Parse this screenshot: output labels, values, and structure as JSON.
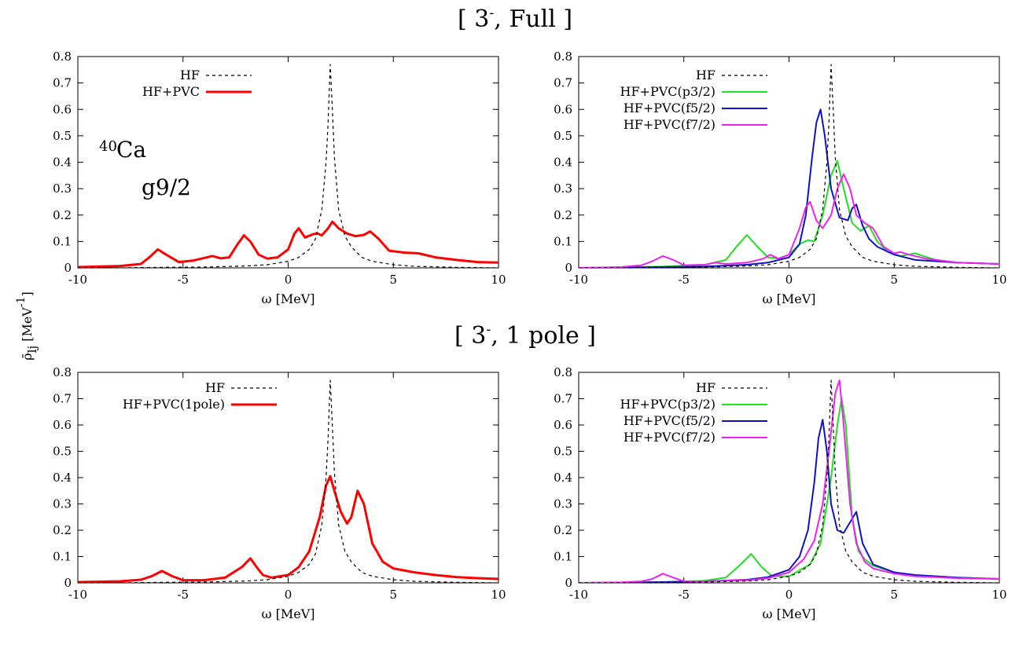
{
  "figure": {
    "titles": [
      {
        "base": "[ 3",
        "sup": "-",
        "rest": ", Full ]"
      },
      {
        "base": "[ 3",
        "sup": "-",
        "rest": ", 1 pole ]"
      }
    ],
    "ylabel": {
      "base": "ρ̄",
      "sub": "lj",
      "unit": " [MeV",
      "unit_sup": "-1",
      "unit_end": "]"
    },
    "annotation": {
      "sup": "40",
      "element": "Ca",
      "orbital": "g9/2"
    },
    "colors": {
      "HF": "#000000",
      "HF+PVC": "#ff0000",
      "p32": "#22dd22",
      "f52": "#1010c8",
      "f72": "#ee22ee"
    }
  },
  "chart_data": [
    {
      "type": "line",
      "panel": "full-left",
      "xlabel": "ω [MeV]",
      "xlim": [
        -10,
        10
      ],
      "ylim": [
        0,
        0.8
      ],
      "xticks": [
        -10,
        -5,
        0,
        5,
        10
      ],
      "yticks": [
        0,
        0.1,
        0.2,
        0.3,
        0.4,
        0.5,
        0.6,
        0.7,
        0.8
      ],
      "legend_position": "top-left",
      "series": [
        {
          "name": "HF",
          "style": "dashed",
          "color": "#000000",
          "x": [
            -10,
            -8,
            -6,
            -4,
            -3,
            -2,
            -1,
            0,
            0.5,
            1,
            1.3,
            1.6,
            1.8,
            1.9,
            2.0,
            2.1,
            2.2,
            2.4,
            2.7,
            3,
            3.5,
            4,
            5,
            6,
            8,
            10
          ],
          "y": [
            0,
            0,
            0.002,
            0.003,
            0.005,
            0.007,
            0.012,
            0.025,
            0.04,
            0.07,
            0.11,
            0.22,
            0.4,
            0.55,
            0.77,
            0.6,
            0.42,
            0.22,
            0.12,
            0.08,
            0.04,
            0.025,
            0.012,
            0.006,
            0.002,
            0
          ]
        },
        {
          "name": "HF+PVC",
          "style": "solid",
          "color": "#ff0000",
          "x": [
            -10,
            -8,
            -7,
            -6.6,
            -6.2,
            -5.8,
            -5.2,
            -4.5,
            -3.6,
            -3.2,
            -2.8,
            -2.4,
            -2.1,
            -1.8,
            -1.4,
            -1,
            -0.5,
            0,
            0.3,
            0.5,
            0.8,
            1.2,
            1.4,
            1.6,
            1.9,
            2.1,
            2.4,
            2.8,
            3.2,
            3.6,
            3.9,
            4.3,
            4.8,
            5.5,
            6.2,
            7,
            8,
            9,
            10
          ],
          "y": [
            0.003,
            0.007,
            0.015,
            0.04,
            0.07,
            0.05,
            0.022,
            0.028,
            0.045,
            0.036,
            0.04,
            0.09,
            0.123,
            0.1,
            0.05,
            0.035,
            0.04,
            0.07,
            0.13,
            0.15,
            0.115,
            0.128,
            0.13,
            0.123,
            0.15,
            0.175,
            0.15,
            0.13,
            0.12,
            0.125,
            0.138,
            0.11,
            0.065,
            0.058,
            0.055,
            0.04,
            0.03,
            0.022,
            0.02
          ]
        }
      ]
    },
    {
      "type": "line",
      "panel": "full-right",
      "xlabel": "ω [MeV]",
      "xlim": [
        -10,
        10
      ],
      "ylim": [
        0,
        0.8
      ],
      "xticks": [
        -10,
        -5,
        0,
        5,
        10
      ],
      "yticks": [
        0,
        0.1,
        0.2,
        0.3,
        0.4,
        0.5,
        0.6,
        0.7,
        0.8
      ],
      "legend_position": "top-left",
      "series": [
        {
          "name": "HF",
          "style": "dashed",
          "color": "#000000",
          "x": [
            -10,
            -8,
            -6,
            -4,
            -3,
            -2,
            -1,
            0,
            0.5,
            1,
            1.3,
            1.6,
            1.8,
            1.9,
            2.0,
            2.1,
            2.2,
            2.4,
            2.7,
            3,
            3.5,
            4,
            5,
            6,
            8,
            10
          ],
          "y": [
            0,
            0,
            0.002,
            0.003,
            0.005,
            0.007,
            0.012,
            0.025,
            0.04,
            0.07,
            0.11,
            0.22,
            0.4,
            0.55,
            0.77,
            0.6,
            0.42,
            0.22,
            0.12,
            0.08,
            0.04,
            0.025,
            0.012,
            0.006,
            0.002,
            0
          ]
        },
        {
          "name": "HF+PVC(p3/2)",
          "style": "solid",
          "color": "#22dd22",
          "x": [
            -10,
            -8,
            -6,
            -4,
            -3,
            -2.5,
            -2,
            -1.5,
            -1,
            -0.5,
            0,
            0.5,
            0.9,
            1.2,
            1.6,
            2.0,
            2.3,
            2.6,
            3,
            3.4,
            3.8,
            4.2,
            4.7,
            5.3,
            6,
            6.5,
            7,
            8,
            10
          ],
          "y": [
            0,
            0.002,
            0.005,
            0.012,
            0.03,
            0.08,
            0.125,
            0.08,
            0.04,
            0.035,
            0.05,
            0.09,
            0.105,
            0.1,
            0.2,
            0.35,
            0.405,
            0.3,
            0.17,
            0.14,
            0.16,
            0.1,
            0.06,
            0.045,
            0.055,
            0.042,
            0.03,
            0.02,
            0.015
          ]
        },
        {
          "name": "HF+PVC(f5/2)",
          "style": "solid",
          "color": "#1010c8",
          "x": [
            -10,
            -8,
            -6,
            -4,
            -2,
            -1,
            0,
            0.5,
            0.8,
            1.1,
            1.3,
            1.5,
            1.7,
            2.0,
            2.4,
            2.8,
            3.0,
            3.2,
            3.5,
            3.8,
            4.2,
            5,
            6,
            8,
            10
          ],
          "y": [
            0,
            0.001,
            0.003,
            0.005,
            0.012,
            0.02,
            0.04,
            0.09,
            0.2,
            0.42,
            0.55,
            0.6,
            0.5,
            0.3,
            0.19,
            0.18,
            0.225,
            0.24,
            0.16,
            0.11,
            0.08,
            0.05,
            0.03,
            0.02,
            0.015
          ]
        },
        {
          "name": "HF+PVC(f7/2)",
          "style": "solid",
          "color": "#ee22ee",
          "x": [
            -10,
            -8,
            -7,
            -6.5,
            -6,
            -5.5,
            -5,
            -4,
            -3.5,
            -3,
            -2,
            -1.2,
            -0.9,
            -0.5,
            0,
            0.5,
            0.8,
            1.0,
            1.3,
            1.6,
            2.0,
            2.3,
            2.6,
            2.9,
            3.2,
            3.6,
            4.0,
            4.5,
            5,
            5.3,
            5.7,
            6.5,
            8,
            10
          ],
          "y": [
            0,
            0.003,
            0.01,
            0.025,
            0.045,
            0.03,
            0.01,
            0.012,
            0.02,
            0.015,
            0.02,
            0.035,
            0.05,
            0.035,
            0.05,
            0.15,
            0.23,
            0.25,
            0.18,
            0.15,
            0.2,
            0.3,
            0.355,
            0.3,
            0.2,
            0.17,
            0.15,
            0.08,
            0.055,
            0.06,
            0.05,
            0.035,
            0.02,
            0.015
          ]
        }
      ]
    },
    {
      "type": "line",
      "panel": "pole-left",
      "xlabel": "ω [MeV]",
      "xlim": [
        -10,
        10
      ],
      "ylim": [
        0,
        0.8
      ],
      "xticks": [
        -10,
        -5,
        0,
        5,
        10
      ],
      "yticks": [
        0,
        0.1,
        0.2,
        0.3,
        0.4,
        0.5,
        0.6,
        0.7,
        0.8
      ],
      "legend_position": "top-center",
      "series": [
        {
          "name": "HF",
          "style": "dashed",
          "color": "#000000",
          "x": [
            -10,
            -8,
            -6,
            -4,
            -3,
            -2,
            -1,
            0,
            0.5,
            1,
            1.3,
            1.6,
            1.8,
            1.9,
            2.0,
            2.1,
            2.2,
            2.4,
            2.7,
            3,
            3.5,
            4,
            5,
            6,
            8,
            10
          ],
          "y": [
            0,
            0,
            0.002,
            0.003,
            0.005,
            0.007,
            0.012,
            0.025,
            0.04,
            0.07,
            0.11,
            0.22,
            0.4,
            0.55,
            0.77,
            0.6,
            0.42,
            0.22,
            0.12,
            0.08,
            0.04,
            0.025,
            0.012,
            0.006,
            0.002,
            0
          ]
        },
        {
          "name": "HF+PVC(1pole)",
          "style": "solid",
          "color": "#ff0000",
          "x": [
            -10,
            -8,
            -7,
            -6.5,
            -6,
            -5.5,
            -5,
            -4,
            -3,
            -2.2,
            -1.8,
            -1.5,
            -1.2,
            -0.8,
            0,
            0.5,
            1,
            1.5,
            1.8,
            2.0,
            2.2,
            2.5,
            2.8,
            3.0,
            3.3,
            3.6,
            4.0,
            4.5,
            5,
            6,
            7,
            8,
            9,
            10
          ],
          "y": [
            0.003,
            0.006,
            0.012,
            0.025,
            0.045,
            0.025,
            0.01,
            0.01,
            0.02,
            0.06,
            0.093,
            0.06,
            0.03,
            0.02,
            0.03,
            0.06,
            0.12,
            0.25,
            0.37,
            0.405,
            0.35,
            0.27,
            0.225,
            0.25,
            0.35,
            0.3,
            0.15,
            0.08,
            0.055,
            0.04,
            0.03,
            0.022,
            0.018,
            0.015
          ]
        }
      ]
    },
    {
      "type": "line",
      "panel": "pole-right",
      "xlabel": "ω [MeV]",
      "xlim": [
        -10,
        10
      ],
      "ylim": [
        0,
        0.8
      ],
      "xticks": [
        -10,
        -5,
        0,
        5,
        10
      ],
      "yticks": [
        0,
        0.1,
        0.2,
        0.3,
        0.4,
        0.5,
        0.6,
        0.7,
        0.8
      ],
      "legend_position": "top-left",
      "series": [
        {
          "name": "HF",
          "style": "dashed",
          "color": "#000000",
          "x": [
            -10,
            -8,
            -6,
            -4,
            -3,
            -2,
            -1,
            0,
            0.5,
            1,
            1.3,
            1.6,
            1.8,
            1.9,
            2.0,
            2.1,
            2.2,
            2.4,
            2.7,
            3,
            3.5,
            4,
            5,
            6,
            8,
            10
          ],
          "y": [
            0,
            0,
            0.002,
            0.003,
            0.005,
            0.007,
            0.012,
            0.025,
            0.04,
            0.07,
            0.11,
            0.22,
            0.4,
            0.55,
            0.77,
            0.6,
            0.42,
            0.22,
            0.12,
            0.08,
            0.04,
            0.025,
            0.012,
            0.006,
            0.002,
            0
          ]
        },
        {
          "name": "HF+PVC(p3/2)",
          "style": "solid",
          "color": "#22dd22",
          "x": [
            -10,
            -8,
            -6,
            -4,
            -3,
            -2.3,
            -1.8,
            -1.3,
            -0.8,
            0,
            1,
            1.5,
            2.0,
            2.3,
            2.5,
            2.7,
            3.0,
            3.3,
            3.6,
            4,
            5,
            6,
            8,
            10
          ],
          "y": [
            0,
            0.001,
            0.003,
            0.008,
            0.02,
            0.07,
            0.11,
            0.06,
            0.025,
            0.025,
            0.07,
            0.15,
            0.4,
            0.6,
            0.7,
            0.6,
            0.25,
            0.12,
            0.09,
            0.065,
            0.04,
            0.03,
            0.02,
            0.015
          ]
        },
        {
          "name": "HF+PVC(f5/2)",
          "style": "solid",
          "color": "#1010c8",
          "x": [
            -10,
            -8,
            -6,
            -4,
            -2,
            -1,
            0,
            0.5,
            0.9,
            1.2,
            1.4,
            1.6,
            1.8,
            2.0,
            2.3,
            2.6,
            2.9,
            3.2,
            3.5,
            4,
            5,
            6,
            8,
            10
          ],
          "y": [
            0,
            0.001,
            0.003,
            0.006,
            0.012,
            0.022,
            0.05,
            0.1,
            0.2,
            0.38,
            0.55,
            0.62,
            0.5,
            0.3,
            0.2,
            0.19,
            0.23,
            0.27,
            0.15,
            0.07,
            0.04,
            0.03,
            0.02,
            0.015
          ]
        },
        {
          "name": "HF+PVC(f7/2)",
          "style": "solid",
          "color": "#ee22ee",
          "x": [
            -10,
            -8,
            -7,
            -6.5,
            -6,
            -5.5,
            -5,
            -4,
            -3,
            -2,
            -1,
            0,
            0.7,
            1.2,
            1.6,
            1.9,
            2.2,
            2.4,
            2.6,
            2.9,
            3.2,
            3.6,
            4,
            5,
            6,
            8,
            10
          ],
          "y": [
            0,
            0.002,
            0.006,
            0.015,
            0.035,
            0.02,
            0.006,
            0.006,
            0.008,
            0.01,
            0.018,
            0.04,
            0.09,
            0.16,
            0.3,
            0.5,
            0.72,
            0.77,
            0.6,
            0.3,
            0.15,
            0.08,
            0.055,
            0.035,
            0.025,
            0.018,
            0.015
          ]
        }
      ]
    }
  ]
}
